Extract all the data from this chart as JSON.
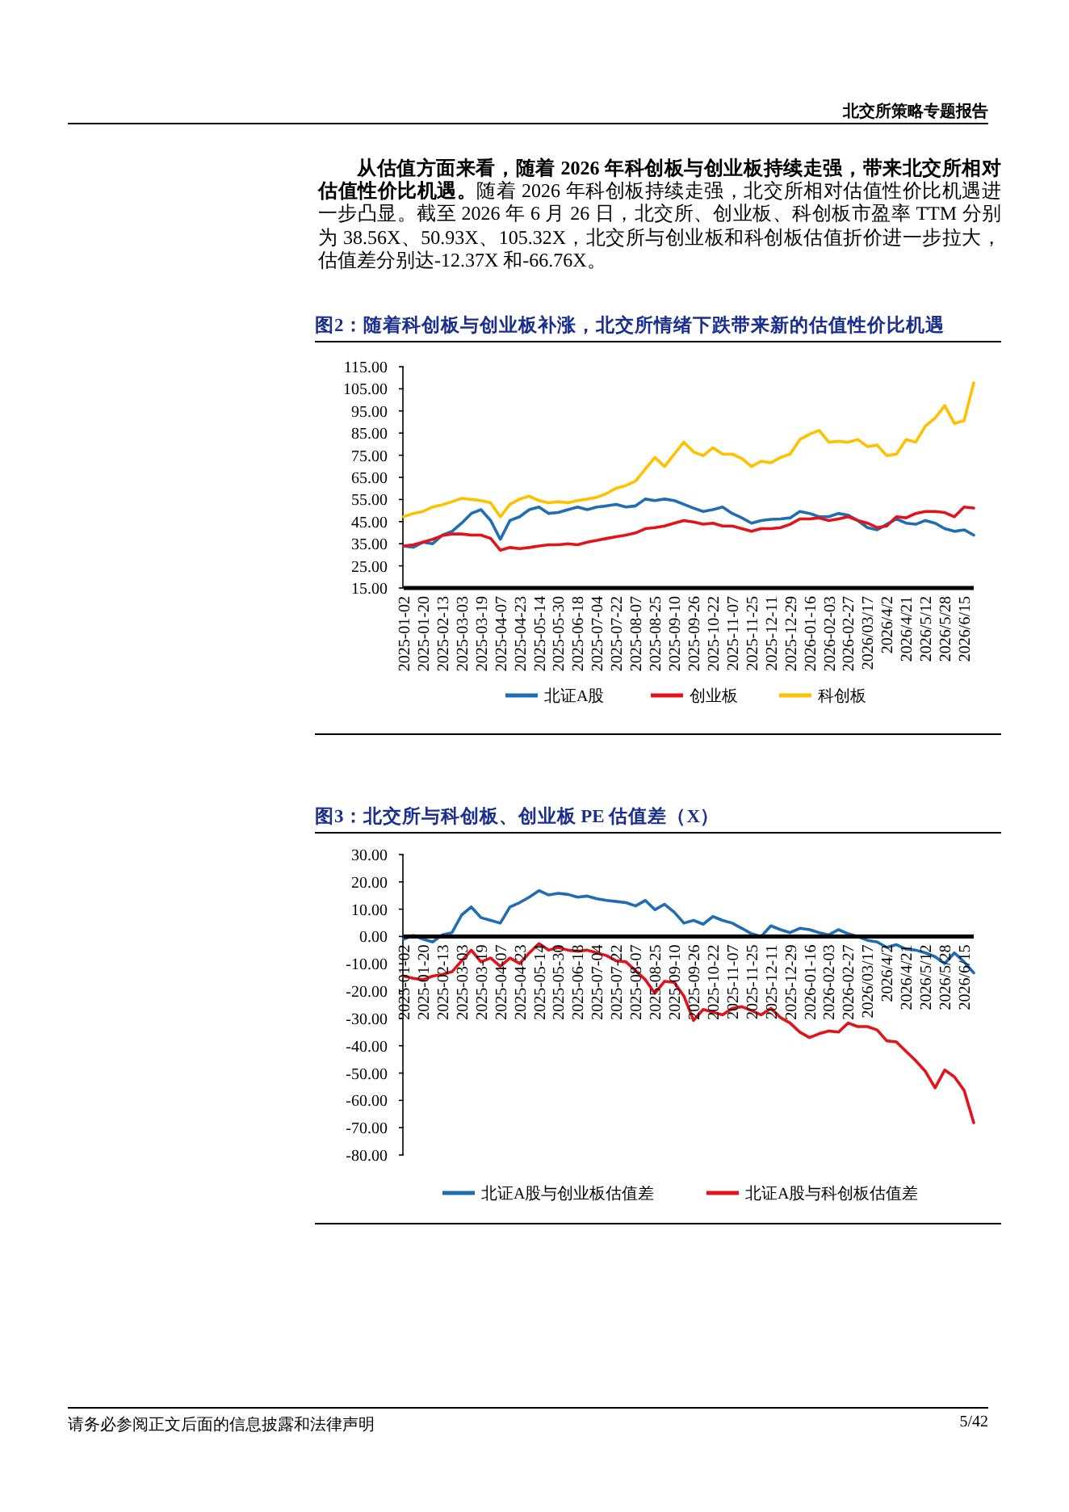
{
  "chart_data": [
    {
      "type": "line",
      "title": "图2：随着科创板与创业板补涨，北交所情绪下跌带来新的估值性价比机遇",
      "categories": [
        "2025-01-02",
        null,
        "2025-01-20",
        null,
        "2025-02-13",
        null,
        "2025-03-03",
        null,
        "2025-03-19",
        null,
        "2025-04-07",
        null,
        "2025-04-23",
        null,
        "2025-05-14",
        null,
        "2025-05-30",
        null,
        "2025-06-18",
        null,
        "2025-07-04",
        null,
        "2025-07-22",
        null,
        "2025-08-07",
        null,
        "2025-08-25",
        null,
        "2025-09-10",
        null,
        "2025-09-26",
        null,
        "2025-10-22",
        null,
        "2025-11-07",
        null,
        "2025-11-25",
        null,
        "2025-12-11",
        null,
        "2025-12-29",
        null,
        "2026-01-16",
        null,
        "2026-02-03",
        null,
        "2026-02-27",
        null,
        "2026/03/17",
        null,
        "2026/4/2",
        null,
        "2026/4/21",
        null,
        "2026/5/12",
        null,
        "2026/5/28",
        null,
        "2026/6/15",
        null
      ],
      "series": [
        {
          "name": "北证A股",
          "color": "#1f6db5",
          "values": [
            34.0,
            33.4,
            35.7,
            35.0,
            38.9,
            40.6,
            44.3,
            48.7,
            50.4,
            45.5,
            37.0,
            45.5,
            47.2,
            50.4,
            51.6,
            48.7,
            49.1,
            50.4,
            51.6,
            50.4,
            51.6,
            52.1,
            52.8,
            51.6,
            52.1,
            55.2,
            54.5,
            55.2,
            54.5,
            52.8,
            51.1,
            49.6,
            50.4,
            51.6,
            48.7,
            46.7,
            44.3,
            45.5,
            46.0,
            46.2,
            46.7,
            49.6,
            48.7,
            47.2,
            47.2,
            48.7,
            47.9,
            45.5,
            42.3,
            41.3,
            43.8,
            46.2,
            44.3,
            43.8,
            45.5,
            44.3,
            41.8,
            40.6,
            41.3,
            38.9
          ]
        },
        {
          "name": "创业板",
          "color": "#e3131b",
          "values": [
            34.0,
            34.5,
            35.7,
            37.0,
            38.7,
            39.4,
            39.4,
            38.9,
            38.9,
            37.4,
            32.1,
            33.3,
            32.8,
            33.3,
            34.0,
            34.5,
            34.5,
            35.0,
            34.5,
            35.7,
            36.5,
            37.4,
            38.2,
            38.9,
            39.9,
            41.8,
            42.3,
            43.0,
            44.3,
            45.5,
            44.8,
            43.8,
            44.3,
            43.0,
            43.0,
            41.8,
            40.6,
            41.8,
            41.8,
            42.3,
            43.8,
            46.2,
            46.2,
            46.7,
            45.5,
            46.2,
            47.2,
            45.5,
            44.3,
            42.3,
            43.0,
            47.2,
            46.7,
            48.7,
            49.6,
            49.6,
            49.1,
            47.2,
            51.6,
            51.1
          ]
        },
        {
          "name": "科创板",
          "color": "#ffc000",
          "values": [
            47.2,
            48.7,
            49.6,
            51.6,
            52.6,
            54.0,
            55.5,
            55.0,
            54.5,
            53.5,
            47.2,
            52.8,
            55.2,
            56.5,
            54.5,
            53.5,
            54.0,
            53.5,
            54.5,
            55.2,
            56.0,
            57.7,
            60.1,
            61.3,
            63.3,
            68.7,
            74.0,
            69.9,
            75.5,
            80.9,
            76.5,
            74.8,
            78.4,
            75.5,
            75.5,
            73.5,
            69.9,
            72.3,
            71.6,
            74.0,
            75.5,
            82.1,
            84.5,
            86.2,
            80.9,
            81.3,
            80.9,
            82.1,
            78.9,
            79.6,
            74.8,
            75.5,
            82.1,
            80.9,
            88.2,
            91.8,
            97.4,
            89.4,
            90.6,
            107.7
          ]
        }
      ],
      "ylim": [
        15,
        115
      ],
      "yticks": [
        {
          "value": 15,
          "label": "15.00"
        },
        {
          "value": 25,
          "label": "25.00"
        },
        {
          "value": 35,
          "label": "35.00"
        },
        {
          "value": 45,
          "label": "45.00"
        },
        {
          "value": 55,
          "label": "55.00"
        },
        {
          "value": 65,
          "label": "65.00"
        },
        {
          "value": 75,
          "label": "75.00"
        },
        {
          "value": 85,
          "label": "85.00"
        },
        {
          "value": 95,
          "label": "95.00"
        },
        {
          "value": 105,
          "label": "105.00"
        },
        {
          "value": 115,
          "label": "115.00"
        }
      ],
      "legend": "bottom",
      "annotations": [
        "北交所策略专题报告",
        "从估值方面来看，随着 2026 年科创板与创业板持续走强，带来北交所相对估值性价比机遇。",
        "随着 2026 年科创板持续走强，北交所相对估值性价比机遇进一步凸显。截至 2026 年 6 月 26 日，北交所、创业板、科创板市盈率 TTM 分别为 38.56X、50.93X、105.32X，北交所与创业板和科创板估值折价进一步拉大，估值差分别达-12.37X 和-66.76X。"
      ]
    },
    {
      "type": "line",
      "title": "图3：北交所与科创板、创业板 PE 估值差（X）",
      "categories": [
        "2025-01-02",
        null,
        "2025-01-20",
        null,
        "2025-02-13",
        null,
        "2025-03-03",
        null,
        "2025-03-19",
        null,
        "2025-04-07",
        null,
        "2025-04-23",
        null,
        "2025-05-14",
        null,
        "2025-05-30",
        null,
        "2025-06-18",
        null,
        "2025-07-04",
        null,
        "2025-07-22",
        null,
        "2025-08-07",
        null,
        "2025-08-25",
        null,
        "2025-09-10",
        null,
        "2025-09-26",
        null,
        "2025-10-22",
        null,
        "2025-11-07",
        null,
        "2025-11-25",
        null,
        "2025-12-11",
        null,
        "2025-12-29",
        null,
        "2026-01-16",
        null,
        "2026-02-03",
        null,
        "2026-02-27",
        null,
        "2026/03/17",
        null,
        "2026/4/2",
        null,
        "2026/4/21",
        null,
        "2026/5/12",
        null,
        "2026/5/28",
        null,
        "2026/6/15",
        null
      ],
      "series": [
        {
          "name": "北证A股与创业板估值差",
          "color": "#1f6db5",
          "values": [
            -1.0,
            0.4,
            -1.0,
            -2.0,
            0.6,
            1.4,
            7.9,
            10.8,
            6.9,
            5.9,
            4.9,
            10.8,
            12.4,
            14.4,
            16.8,
            15.2,
            15.8,
            15.4,
            14.4,
            14.8,
            13.8,
            13.2,
            12.8,
            12.4,
            11.2,
            13.2,
            9.8,
            11.8,
            8.9,
            4.9,
            5.9,
            4.5,
            7.3,
            5.9,
            4.9,
            3.0,
            1.0,
            0.0,
            3.9,
            2.5,
            1.4,
            3.0,
            2.5,
            1.4,
            0.6,
            2.5,
            1.0,
            0.0,
            -1.4,
            -2.0,
            -4.0,
            -3.0,
            -4.6,
            -5.0,
            -6.0,
            -7.4,
            -9.9,
            -6.0,
            -9.3,
            -13.3
          ]
        },
        {
          "name": "北证A股与科创板估值差",
          "color": "#e3131b",
          "values": [
            -14.5,
            -15.3,
            -15.8,
            -14.5,
            -13.9,
            -12.9,
            -8.9,
            -5.0,
            -9.3,
            -7.9,
            -10.9,
            -7.9,
            -9.9,
            -6.0,
            -2.6,
            -5.0,
            -4.0,
            -5.0,
            -5.4,
            -5.0,
            -6.0,
            -7.0,
            -8.9,
            -9.3,
            -12.5,
            -15.8,
            -20.8,
            -16.4,
            -16.8,
            -21.8,
            -30.7,
            -26.7,
            -27.7,
            -28.7,
            -26.3,
            -25.7,
            -27.1,
            -28.7,
            -26.3,
            -29.7,
            -31.7,
            -35.0,
            -37.0,
            -35.6,
            -34.6,
            -35.0,
            -31.7,
            -33.0,
            -33.0,
            -34.2,
            -38.2,
            -38.6,
            -42.1,
            -45.5,
            -49.4,
            -55.4,
            -48.9,
            -51.4,
            -56.3,
            -68.2
          ]
        }
      ],
      "ylim": [
        -80,
        30
      ],
      "yticks": [
        {
          "value": 30,
          "label": "30.00"
        },
        {
          "value": 20,
          "label": "20.00"
        },
        {
          "value": 10,
          "label": "10.00"
        },
        {
          "value": 0,
          "label": "0.00"
        },
        {
          "value": -10,
          "label": "-10.00"
        },
        {
          "value": -20,
          "label": "-20.00"
        },
        {
          "value": -30,
          "label": "-30.00"
        },
        {
          "value": -40,
          "label": "-40.00"
        },
        {
          "value": -50,
          "label": "-50.00"
        },
        {
          "value": -60,
          "label": "-60.00"
        },
        {
          "value": -70,
          "label": "-70.00"
        },
        {
          "value": -80,
          "label": "-80.00"
        }
      ],
      "legend": "bottom",
      "annotations": [
        "请务必参阅正文后面的信息披露和法律声明",
        "5/42"
      ]
    }
  ]
}
